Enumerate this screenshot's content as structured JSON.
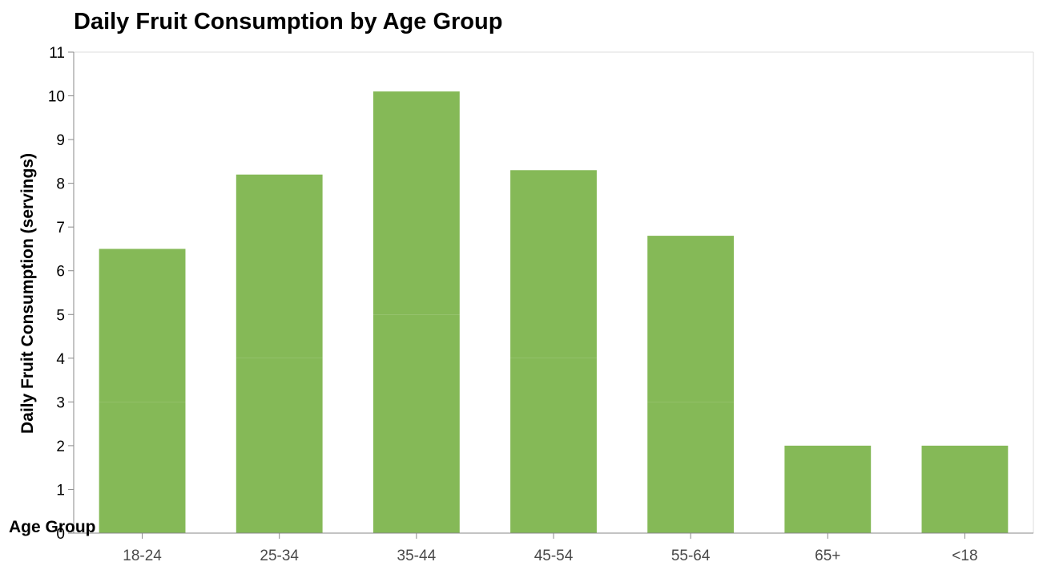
{
  "chart_data": {
    "type": "bar",
    "stacked": true,
    "title": "Daily Fruit Consumption by Age Group",
    "xlabel": "Age Group",
    "ylabel": "Daily Fruit Consumption (servings)",
    "categories": [
      "18-24",
      "25-34",
      "35-44",
      "45-54",
      "55-64",
      "65+",
      "<18"
    ],
    "series": [
      {
        "values": [
          3,
          4,
          5,
          4,
          3,
          2,
          2
        ]
      },
      {
        "values": [
          3.5,
          4.2,
          5.1,
          4.3,
          3.8,
          0,
          0
        ]
      }
    ],
    "totals": [
      6.5,
      8.2,
      10.1,
      8.3,
      6.8,
      2,
      2
    ],
    "ylim": [
      0,
      11
    ],
    "yticks": [
      0,
      1,
      2,
      3,
      4,
      5,
      6,
      7,
      8,
      9,
      10,
      11
    ],
    "bar_color": "#85b957",
    "grid": false,
    "legend": "none"
  }
}
